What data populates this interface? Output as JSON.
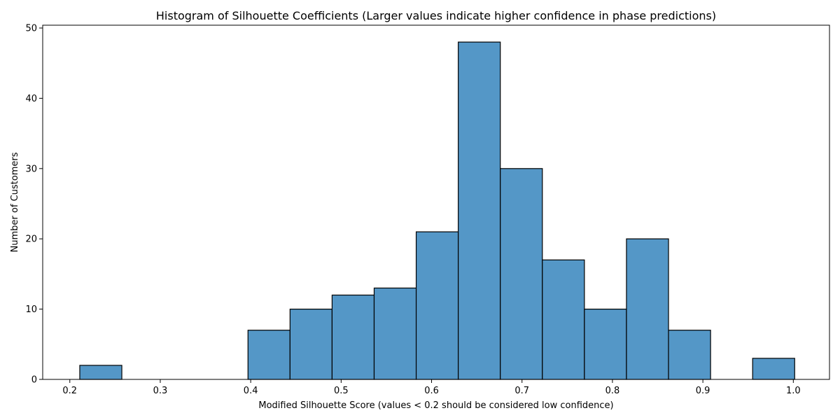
{
  "chart_data": {
    "type": "bar",
    "title": "Histogram of Silhouette Coefficients (Larger values indicate higher confidence in phase predictions)",
    "xlabel": "Modified Silhouette Score (values < 0.2 should be considered low confidence)",
    "ylabel": "Number of Customers",
    "xlim": [
      0.17,
      1.04
    ],
    "ylim": [
      0,
      50.4
    ],
    "xticks": [
      0.2,
      0.3,
      0.4,
      0.5,
      0.6,
      0.7,
      0.8,
      0.9,
      1.0
    ],
    "xtick_labels": [
      "0.2",
      "0.3",
      "0.4",
      "0.5",
      "0.6",
      "0.7",
      "0.8",
      "0.9",
      "1.0"
    ],
    "yticks": [
      0,
      10,
      20,
      30,
      40,
      50
    ],
    "ytick_labels": [
      "0",
      "10",
      "20",
      "30",
      "40",
      "50"
    ],
    "bin_edges": [
      0.211,
      0.2575,
      0.304,
      0.3505,
      0.397,
      0.4435,
      0.49,
      0.5365,
      0.583,
      0.6295,
      0.676,
      0.7225,
      0.769,
      0.8155,
      0.862,
      0.9085,
      0.955,
      1.0015
    ],
    "values": [
      2,
      0,
      0,
      0,
      7,
      10,
      12,
      13,
      21,
      48,
      30,
      17,
      10,
      20,
      7,
      0,
      3
    ],
    "grid": false,
    "bar_color": "#5497c7",
    "edge_color": "#000000"
  }
}
